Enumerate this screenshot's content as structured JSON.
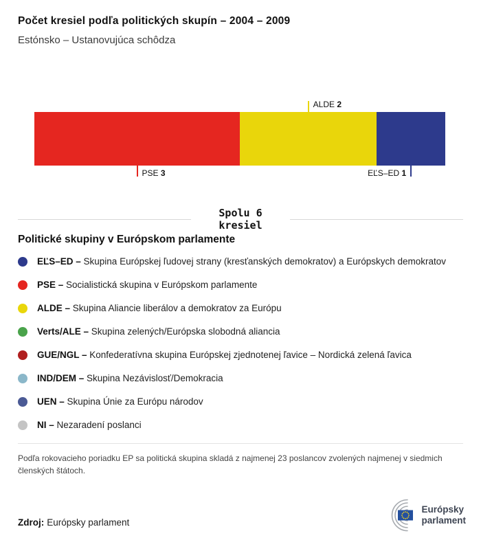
{
  "chart_data": {
    "type": "bar",
    "orientation": "horizontal-stacked",
    "title": "Počet kresiel podľa politických skupín – 2004 – 2009",
    "subtitle": "Estónsko – Ustanovujúca schôdza",
    "total": 6,
    "total_label": "Spolu 6\nkresiel",
    "segments": [
      {
        "id": "pse",
        "group": "PSE",
        "seats": 3,
        "color": "#e52620",
        "label_side": "below",
        "label_align": "start"
      },
      {
        "id": "alde",
        "group": "ALDE",
        "seats": 2,
        "color": "#e9d60b",
        "label_side": "above",
        "label_align": "start"
      },
      {
        "id": "els-ed",
        "group": "EĽS–ED",
        "seats": 1,
        "color": "#2d3a8c",
        "label_side": "below",
        "label_align": "end"
      }
    ]
  },
  "legend": {
    "title": "Politické skupiny v Európskom parlamente",
    "items": [
      {
        "id": "els-ed",
        "abbr": "EĽS–ED –",
        "desc": "Skupina Európskej ľudovej strany (kresťanských demokratov) a Európskych demokratov",
        "color": "#2d3a8c"
      },
      {
        "id": "pse",
        "abbr": "PSE –",
        "desc": "Socialistická skupina v Európskom parlamente",
        "color": "#e52620"
      },
      {
        "id": "alde",
        "abbr": "ALDE –",
        "desc": "Skupina Aliancie liberálov a demokratov za Európu",
        "color": "#e9d60b"
      },
      {
        "id": "verts-ale",
        "abbr": "Verts/ALE –",
        "desc": "Skupina zelených/Európska slobodná aliancia",
        "color": "#4aa34b"
      },
      {
        "id": "gue-ngl",
        "abbr": "GUE/NGL –",
        "desc": "Konfederatívna skupina Európskej zjednotenej ľavice – Nordická zelená ľavica",
        "color": "#b01f1f"
      },
      {
        "id": "ind-dem",
        "abbr": "IND/DEM –",
        "desc": "Skupina Nezávislosť/Demokracia",
        "color": "#8bb7c9"
      },
      {
        "id": "uen",
        "abbr": "UEN –",
        "desc": "Skupina Únie za Európu národov",
        "color": "#4b5a95"
      },
      {
        "id": "ni",
        "abbr": "NI –",
        "desc": "Nezaradení poslanci",
        "color": "#c4c4c4"
      }
    ]
  },
  "footnote": "Podľa rokovacieho poriadku EP sa politická skupina skladá z najmenej 23 poslancov zvolených najmenej v siedmich členských štátoch.",
  "source": {
    "label": "Zdroj:",
    "value": "Európsky parlament"
  },
  "logo": {
    "line1": "Európsky",
    "line2": "parlament"
  }
}
